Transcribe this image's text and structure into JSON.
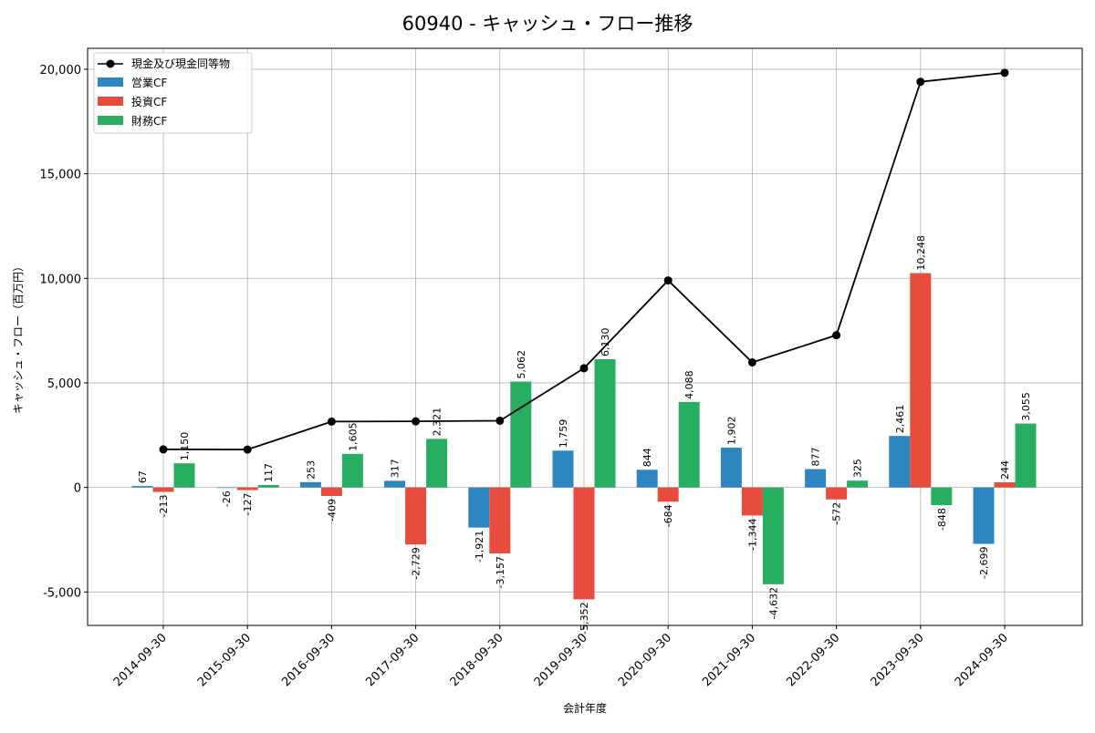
{
  "chart_data": {
    "type": "bar",
    "title": "60940 - キャッシュ・フロー推移",
    "xlabel": "会計年度",
    "ylabel": "キャッシュ・フロー（百万円）",
    "ylim": [
      -6600,
      21000
    ],
    "yticks": [
      -5000,
      0,
      5000,
      10000,
      15000,
      20000
    ],
    "ytick_labels": [
      "-5,000",
      "0",
      "5,000",
      "10,000",
      "15,000",
      "20,000"
    ],
    "grid": true,
    "legend_position": "top-left",
    "categories": [
      "2014-09-30",
      "2015-09-30",
      "2016-09-30",
      "2017-09-30",
      "2018-09-30",
      "2019-09-30",
      "2020-09-30",
      "2021-09-30",
      "2022-09-30",
      "2023-09-30",
      "2024-09-30"
    ],
    "series": [
      {
        "name": "営業CF",
        "kind": "bar",
        "color": "#2e86c1",
        "values": [
          67,
          -26,
          253,
          317,
          -1921,
          1759,
          844,
          1902,
          877,
          2461,
          -2699
        ],
        "labels": [
          "67",
          "-26",
          "253",
          "317",
          "-1,921",
          "1,759",
          "844",
          "1,902",
          "877",
          "2,461",
          "-2,699"
        ]
      },
      {
        "name": "投資CF",
        "kind": "bar",
        "color": "#e74c3c",
        "values": [
          -213,
          -127,
          -409,
          -2729,
          -3157,
          -5352,
          -684,
          -1344,
          -572,
          10248,
          244
        ],
        "labels": [
          "-213",
          "-127",
          "-409",
          "-2,729",
          "-3,157",
          "-5,352",
          "-684",
          "-1,344",
          "-572",
          "10,248",
          "244"
        ]
      },
      {
        "name": "財務CF",
        "kind": "bar",
        "color": "#27ae60",
        "values": [
          1150,
          117,
          1605,
          2321,
          5062,
          6130,
          4088,
          -4632,
          325,
          -848,
          3055
        ],
        "labels": [
          "1,150",
          "117",
          "1,605",
          "2,321",
          "5,062",
          "6,130",
          "4,088",
          "-4,632",
          "325",
          "-848",
          "3,055"
        ]
      }
    ],
    "line": {
      "name": "現金及び現金同等物",
      "kind": "line",
      "color": "#000000",
      "values": [
        1820,
        1810,
        3150,
        3160,
        3190,
        5700,
        9900,
        5980,
        7280,
        19400,
        19830
      ]
    }
  }
}
